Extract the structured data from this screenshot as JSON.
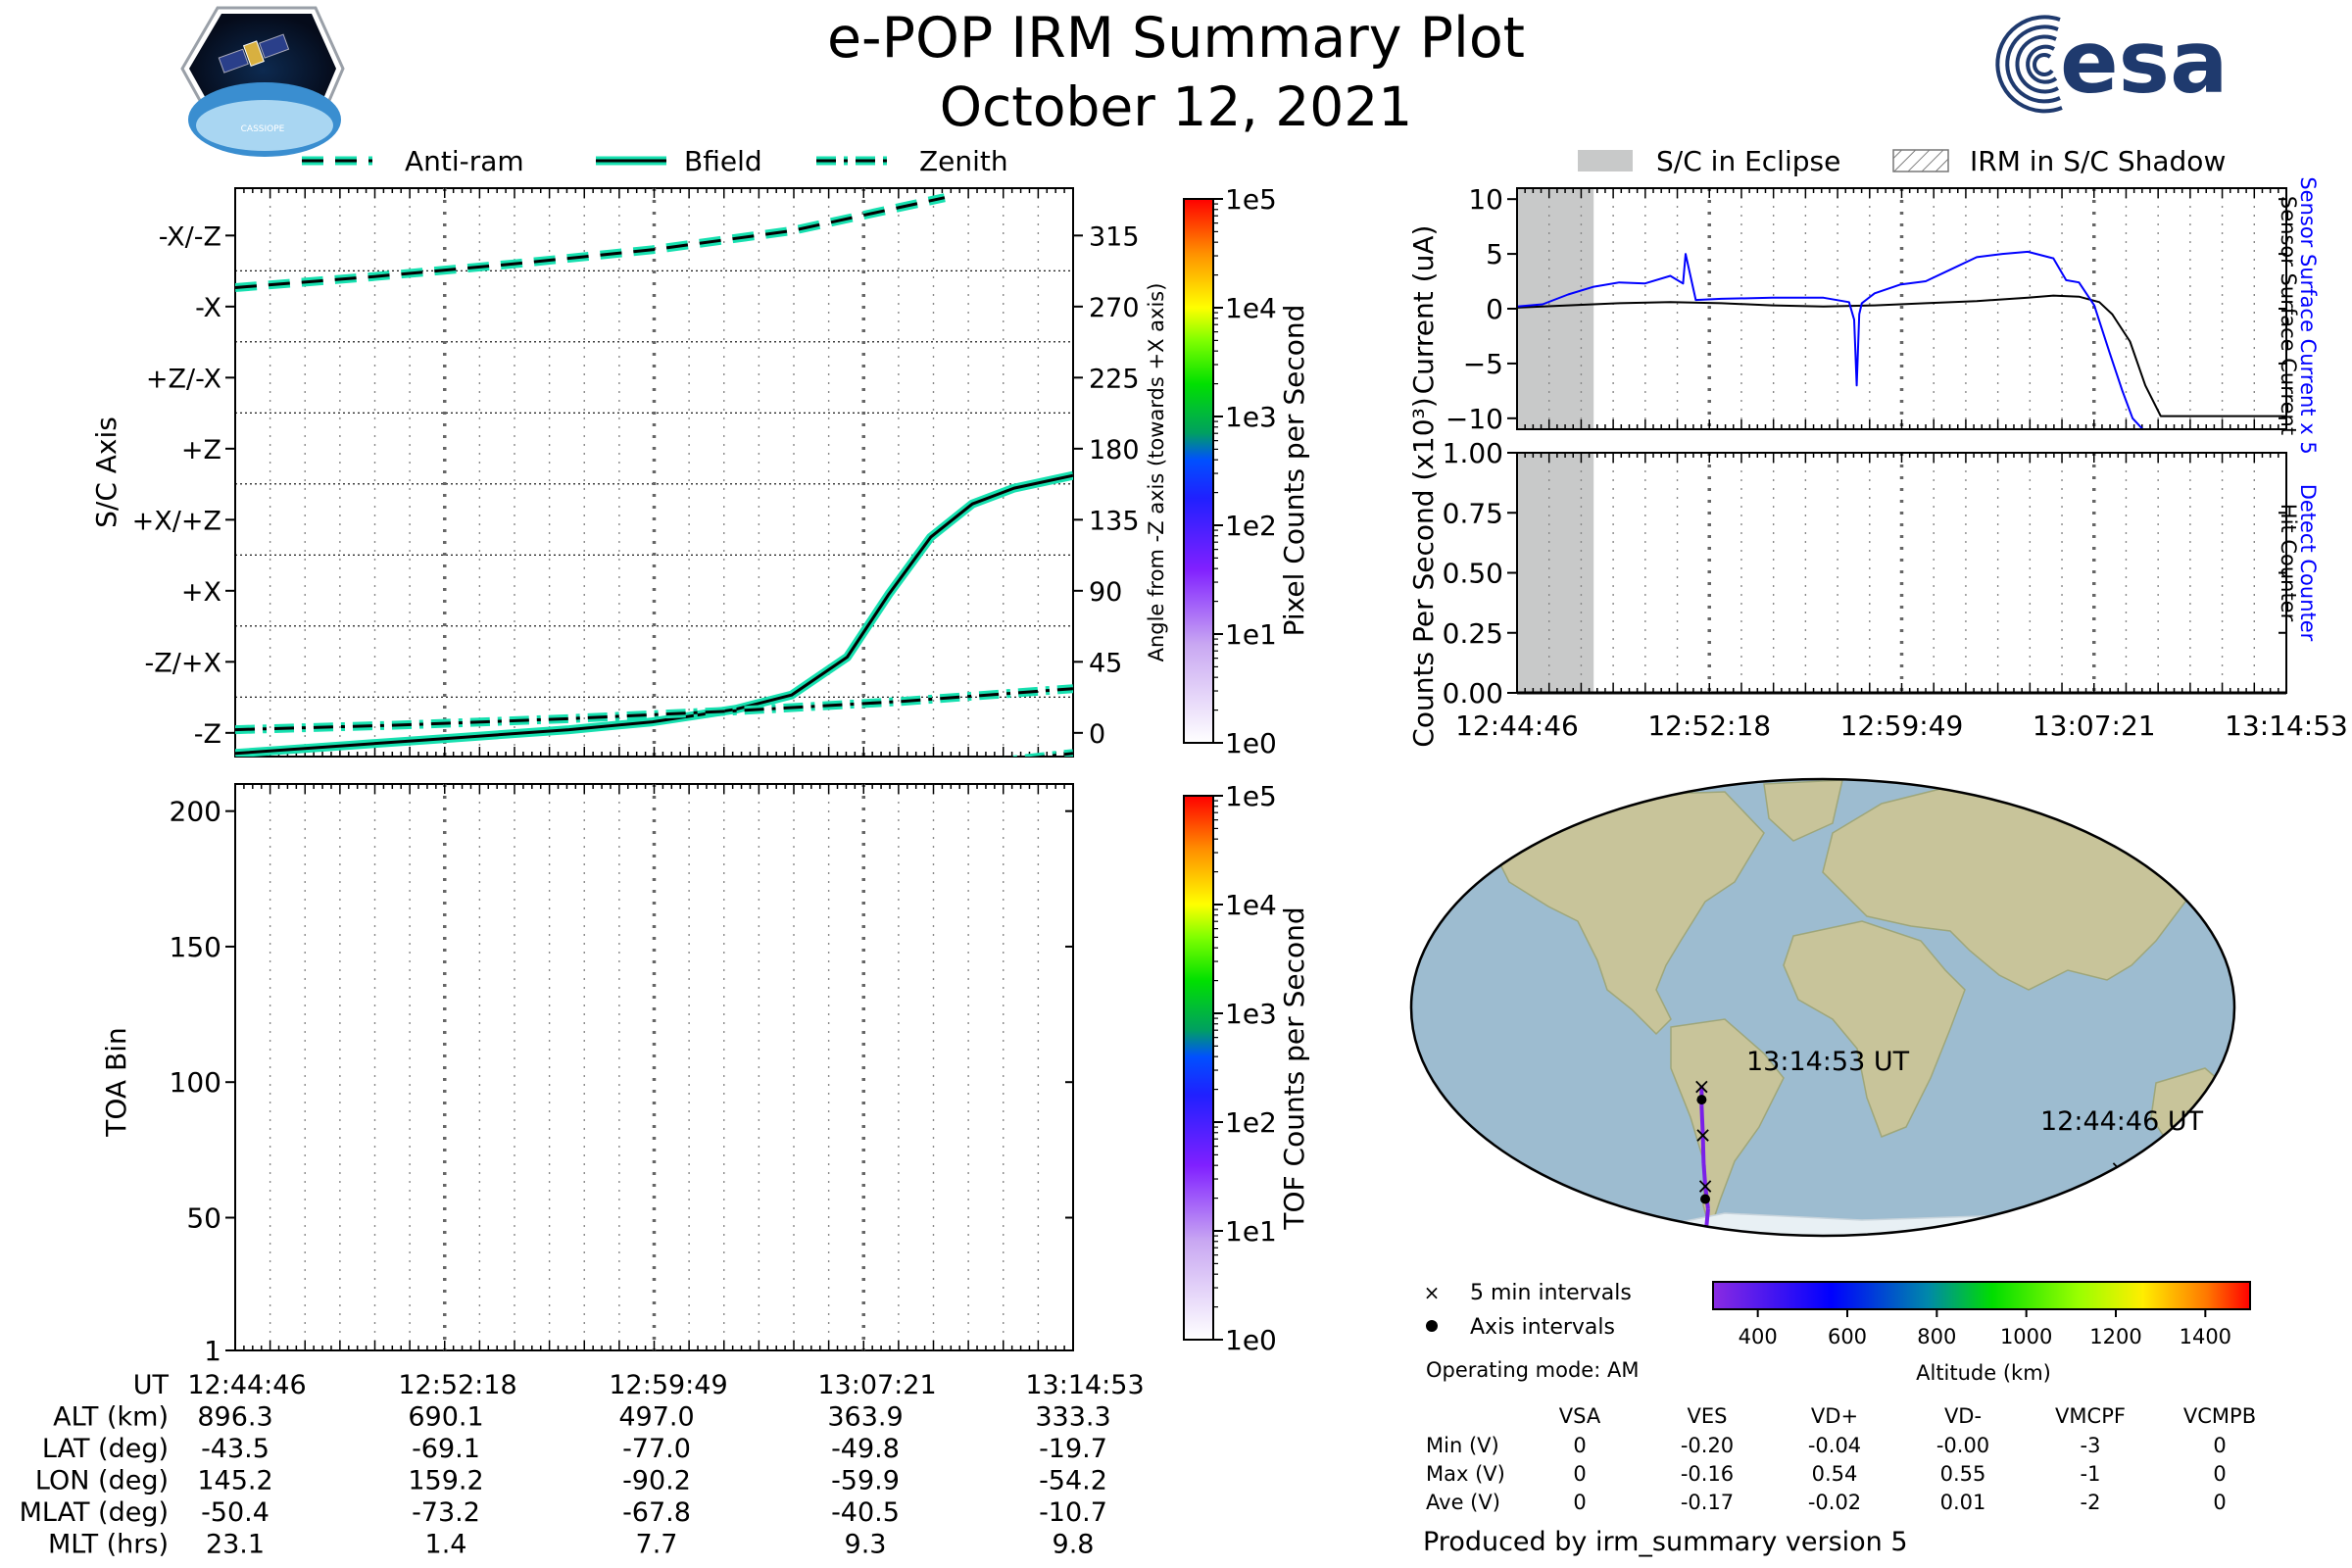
{
  "header": {
    "title": "e-POP IRM Summary Plot",
    "date": "October 12, 2021",
    "left_logo_text": "CASSIOPE",
    "right_logo_text": "esa"
  },
  "footer": {
    "operating_mode": "Operating mode: AM",
    "produced_by": "Produced by irm_summary version 5"
  },
  "chart_data": [
    {
      "id": "attitude",
      "type": "line",
      "legend": [
        "Anti-ram",
        "Bfield",
        "Zenith"
      ],
      "legend_placement": "top",
      "ylabel": "S/C Axis",
      "ylabel_right": "Angle from -Z axis (towards +X axis)",
      "y_ticklabels": [
        "-Z",
        "-Z/+X",
        "+X",
        "+X/+Z",
        "+Z",
        "+Z/-X",
        "-X",
        "-X/-Z"
      ],
      "y_right_ticks": [
        0,
        45,
        90,
        135,
        180,
        225,
        270,
        315
      ],
      "ylim": [
        -15,
        345
      ],
      "x_minutes": [
        0,
        7.53,
        15.05,
        22.58,
        30.12
      ],
      "series": [
        {
          "name": "Anti-ram",
          "style": "dashed",
          "x": [
            0,
            5,
            10,
            15,
            20,
            25.5
          ],
          "y": [
            282,
            289,
            297,
            306,
            318,
            339
          ]
        },
        {
          "name": "Bfield",
          "style": "solid",
          "x": [
            0,
            4,
            8,
            12,
            15,
            18,
            20,
            22,
            23.5,
            25,
            26.5,
            28,
            30.12
          ],
          "y": [
            -13,
            -8,
            -3,
            2,
            7,
            15,
            24,
            48,
            88,
            124,
            145,
            155,
            163
          ]
        },
        {
          "name": "Zenith",
          "style": "dashdot",
          "x": [
            0,
            6,
            12,
            18,
            24,
            30.12
          ],
          "y": [
            2,
            5,
            9,
            14,
            20,
            28
          ]
        },
        {
          "name": "Zenith-wrap",
          "style": "dashdot",
          "x": [
            27,
            30.12
          ],
          "y": [
            -19,
            -13
          ]
        }
      ]
    },
    {
      "id": "pixel-colorbar",
      "type": "heatmap",
      "label": "Pixel Counts per Second",
      "scale": "log",
      "tick_labels": [
        "1e0",
        "1e1",
        "1e2",
        "1e3",
        "1e4",
        "1e5"
      ]
    },
    {
      "id": "toa",
      "type": "heatmap",
      "ylabel": "TOA Bin",
      "y_ticks": [
        1,
        50,
        100,
        150,
        200
      ],
      "ylim": [
        1,
        210
      ],
      "values": []
    },
    {
      "id": "tof-colorbar",
      "type": "heatmap",
      "label": "TOF Counts per Second",
      "scale": "log",
      "tick_labels": [
        "1e0",
        "1e1",
        "1e2",
        "1e3",
        "1e4",
        "1e5"
      ]
    },
    {
      "id": "current",
      "type": "line",
      "legend": [
        "S/C in Eclipse",
        "IRM in S/C Shadow"
      ],
      "legend_placement": "top",
      "ylabel": "Current (uA)",
      "ylabel_right_1": "Sensor Surface Current x 5",
      "ylabel_right_2": "Sensor Surface Current",
      "y_ticks": [
        10,
        5,
        0,
        -5,
        -10
      ],
      "ylim": [
        -11,
        11
      ],
      "eclipse_minutes": [
        0,
        3.0
      ],
      "series": [
        {
          "name": "Sensor Surface Current",
          "color": "#000000",
          "x": [
            0,
            2,
            4,
            6,
            8,
            10,
            12,
            14,
            16,
            18,
            20,
            21,
            22,
            22.8,
            23.3,
            24,
            24.6,
            25.2,
            30.12
          ],
          "y": [
            0.1,
            0.3,
            0.5,
            0.6,
            0.5,
            0.3,
            0.2,
            0.3,
            0.5,
            0.7,
            1.0,
            1.2,
            1.1,
            0.6,
            -0.5,
            -3,
            -7,
            -9.8,
            -9.8
          ]
        },
        {
          "name": "Sensor Surface Current x 5",
          "color": "#0000ff",
          "x": [
            0,
            1,
            2,
            3,
            4,
            5,
            6,
            6.5,
            6.6,
            7,
            8,
            10,
            12,
            13,
            13.2,
            13.3,
            13.4,
            13.5,
            14,
            15,
            16,
            17,
            18,
            19,
            20,
            21,
            21.5,
            22,
            22.6,
            23.2,
            23.7,
            24.1,
            24.5
          ],
          "y": [
            0.2,
            0.4,
            1.3,
            2.0,
            2.4,
            2.3,
            3.0,
            2.3,
            5.0,
            0.8,
            0.9,
            1.0,
            1.0,
            0.6,
            -1.0,
            -7.0,
            -0.5,
            0.5,
            1.4,
            2.2,
            2.5,
            3.6,
            4.7,
            5.0,
            5.2,
            4.6,
            2.6,
            2.4,
            0.3,
            -4,
            -7.5,
            -10,
            -11
          ]
        }
      ]
    },
    {
      "id": "counts",
      "type": "line",
      "ylabel": "Counts Per Second (x10³)",
      "ylabel_right_1": "Detect Counter",
      "ylabel_right_2": "Hit Counter",
      "y_ticklabels": [
        "1.00",
        "0.75",
        "0.50",
        "0.25",
        "0.00"
      ],
      "ylim": [
        0,
        1
      ],
      "eclipse_minutes": [
        0,
        3.0
      ],
      "series": [
        {
          "name": "Detect Counter",
          "color": "#0000ff",
          "x": [
            0,
            30.12
          ],
          "y": [
            0,
            0
          ]
        },
        {
          "name": "Hit Counter",
          "color": "#000000",
          "x": [
            0,
            30.12
          ],
          "y": [
            0,
            0
          ]
        }
      ]
    },
    {
      "id": "altitude-colorbar",
      "type": "heatmap",
      "label": "Altitude (km)",
      "range": [
        300,
        1500
      ],
      "tick_labels": [
        "400",
        "600",
        "800",
        "1000",
        "1200",
        "1400"
      ]
    }
  ],
  "time_axis": {
    "labels": [
      "12:44:46",
      "12:52:18",
      "12:59:49",
      "13:07:21",
      "13:14:53"
    ]
  },
  "ephemeris": {
    "row_labels": [
      "UT",
      "ALT (km)",
      "LAT (deg)",
      "LON (deg)",
      "MLAT (deg)",
      "MLT (hrs)"
    ],
    "columns": [
      [
        "12:44:46",
        "896.3",
        "-43.5",
        "145.2",
        "-50.4",
        "23.1"
      ],
      [
        "12:52:18",
        "690.1",
        "-69.1",
        "159.2",
        "-73.2",
        "1.4"
      ],
      [
        "12:59:49",
        "497.0",
        "-77.0",
        "-90.2",
        "-67.8",
        "7.7"
      ],
      [
        "13:07:21",
        "363.9",
        "-49.8",
        "-59.9",
        "-40.5",
        "9.3"
      ],
      [
        "13:14:53",
        "333.3",
        "-19.7",
        "-54.2",
        "-10.7",
        "9.8"
      ]
    ]
  },
  "map": {
    "start_label": "12:44:46 UT",
    "end_label": "13:14:53 UT",
    "legend_cross": "5 min intervals",
    "legend_dot": "Axis intervals",
    "track_lat": [
      -43.5,
      -50,
      -57,
      -63,
      -69.1,
      -74,
      -78,
      -77,
      -70,
      -60,
      -49.8,
      -42,
      -33,
      -25,
      -19.7
    ],
    "track_lon": [
      145.2,
      148,
      151,
      155,
      159.2,
      180,
      -150,
      -90.2,
      -70,
      -63,
      -59.9,
      -58,
      -56,
      -55,
      -54.2
    ],
    "track_alt": [
      896.3,
      850,
      800,
      750,
      690.1,
      640,
      590,
      497.0,
      440,
      390,
      363.9,
      350,
      340,
      335,
      333.3
    ]
  },
  "voltages": {
    "headers": [
      "VSA",
      "VES",
      "VD+",
      "VD-",
      "VMCPF",
      "VCMPB"
    ],
    "rows": [
      {
        "label": "Min (V)",
        "values": [
          "0",
          "-0.20",
          "-0.04",
          "-0.00",
          "-3",
          "0"
        ]
      },
      {
        "label": "Max (V)",
        "values": [
          "0",
          "-0.16",
          "0.54",
          "0.55",
          "-1",
          "0"
        ]
      },
      {
        "label": "Ave (V)",
        "values": [
          "0",
          "-0.17",
          "-0.02",
          "0.01",
          "-2",
          "0"
        ]
      }
    ]
  },
  "colors": {
    "axis_line_accent": "#17e0b0",
    "current_x5": "#0000ff",
    "detect_counter": "#0000ff",
    "eclipse": "#c8c9c9",
    "ocean": "#9dbcd0",
    "land": "#c8c49a"
  }
}
